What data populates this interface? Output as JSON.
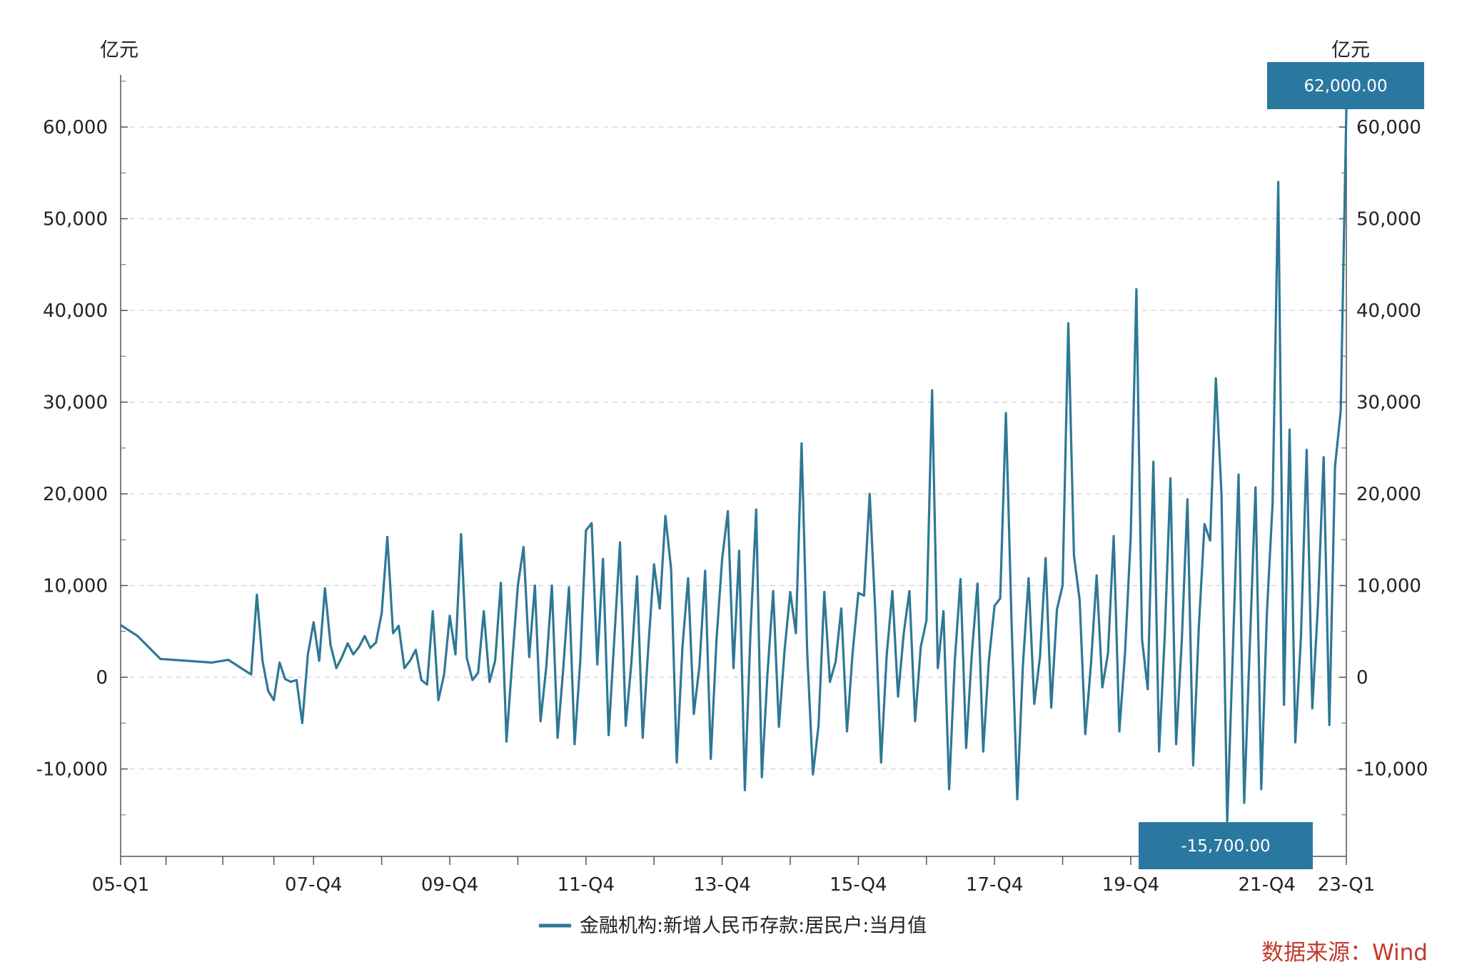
{
  "chart_data": {
    "type": "line",
    "y_unit_left": "亿元",
    "y_unit_right": "亿元",
    "ylim": [
      -20000,
      65000
    ],
    "y_ticks": [
      60000,
      50000,
      40000,
      30000,
      20000,
      10000,
      0,
      -10000
    ],
    "y_tick_labels": [
      "60,000",
      "50,000",
      "40,000",
      "30,000",
      "20,000",
      "10,000",
      "0",
      "-10,000"
    ],
    "x_ticks": [
      {
        "label": "05-Q1",
        "t": 0
      },
      {
        "label": "07-Q4",
        "t": 34
      },
      {
        "label": "09-Q4",
        "t": 58
      },
      {
        "label": "11-Q4",
        "t": 82
      },
      {
        "label": "13-Q4",
        "t": 106
      },
      {
        "label": "15-Q4",
        "t": 130
      },
      {
        "label": "17-Q4",
        "t": 154
      },
      {
        "label": "19-Q4",
        "t": 178
      },
      {
        "label": "21-Q4",
        "t": 202
      },
      {
        "label": "23-Q1",
        "t": 216
      }
    ],
    "xlim": [
      0,
      216
    ],
    "grid": true,
    "legend_position": "bottom-center",
    "series": [
      {
        "name": "金融机构:新增人民币存款:居民户:当月值",
        "color": "#2e7896",
        "points": [
          [
            0,
            5700
          ],
          [
            3,
            4500
          ],
          [
            7,
            2000
          ],
          [
            16,
            1600
          ],
          [
            19,
            1900
          ],
          [
            23,
            300
          ],
          [
            24,
            9000
          ],
          [
            25,
            1800
          ],
          [
            26,
            -1500
          ],
          [
            27,
            -2500
          ],
          [
            28,
            1600
          ],
          [
            29,
            -200
          ],
          [
            30,
            -500
          ],
          [
            31,
            -300
          ],
          [
            32,
            -5000
          ],
          [
            33,
            2500
          ],
          [
            34,
            6000
          ],
          [
            35,
            1800
          ],
          [
            36,
            9700
          ],
          [
            37,
            3500
          ],
          [
            38,
            1000
          ],
          [
            39,
            2200
          ],
          [
            40,
            3700
          ],
          [
            41,
            2500
          ],
          [
            42,
            3300
          ],
          [
            43,
            4500
          ],
          [
            44,
            3200
          ],
          [
            45,
            3800
          ],
          [
            46,
            7000
          ],
          [
            47,
            15300
          ],
          [
            48,
            4800
          ],
          [
            49,
            5600
          ],
          [
            50,
            1000
          ],
          [
            51,
            1800
          ],
          [
            52,
            3000
          ],
          [
            53,
            -300
          ],
          [
            54,
            -800
          ],
          [
            55,
            7200
          ],
          [
            56,
            -2500
          ],
          [
            57,
            300
          ],
          [
            58,
            6700
          ],
          [
            59,
            2500
          ],
          [
            60,
            15600
          ],
          [
            61,
            2100
          ],
          [
            62,
            -300
          ],
          [
            63,
            500
          ],
          [
            64,
            7200
          ],
          [
            65,
            -500
          ],
          [
            66,
            1800
          ],
          [
            67,
            10300
          ],
          [
            68,
            -7000
          ],
          [
            69,
            1700
          ],
          [
            70,
            10000
          ],
          [
            71,
            14200
          ],
          [
            72,
            2200
          ],
          [
            73,
            10000
          ],
          [
            74,
            -4800
          ],
          [
            75,
            1100
          ],
          [
            76,
            10000
          ],
          [
            77,
            -6600
          ],
          [
            78,
            900
          ],
          [
            79,
            9800
          ],
          [
            80,
            -7300
          ],
          [
            81,
            1800
          ],
          [
            82,
            16000
          ],
          [
            83,
            16800
          ],
          [
            84,
            1400
          ],
          [
            85,
            12900
          ],
          [
            86,
            -6300
          ],
          [
            87,
            4300
          ],
          [
            88,
            14700
          ],
          [
            89,
            -5300
          ],
          [
            90,
            1500
          ],
          [
            91,
            11000
          ],
          [
            92,
            -6600
          ],
          [
            93,
            3400
          ],
          [
            94,
            12300
          ],
          [
            95,
            7500
          ],
          [
            96,
            17600
          ],
          [
            97,
            11800
          ],
          [
            98,
            -9300
          ],
          [
            99,
            3300
          ],
          [
            100,
            10800
          ],
          [
            101,
            -4000
          ],
          [
            102,
            1200
          ],
          [
            103,
            11600
          ],
          [
            104,
            -8900
          ],
          [
            105,
            4100
          ],
          [
            106,
            12900
          ],
          [
            107,
            18100
          ],
          [
            108,
            1000
          ],
          [
            109,
            13800
          ],
          [
            110,
            -12300
          ],
          [
            111,
            4900
          ],
          [
            112,
            18300
          ],
          [
            113,
            -10900
          ],
          [
            114,
            500
          ],
          [
            115,
            9400
          ],
          [
            116,
            -5400
          ],
          [
            117,
            2900
          ],
          [
            118,
            9300
          ],
          [
            119,
            4800
          ],
          [
            120,
            25500
          ],
          [
            121,
            2600
          ],
          [
            122,
            -10600
          ],
          [
            123,
            -5200
          ],
          [
            124,
            9300
          ],
          [
            125,
            -500
          ],
          [
            126,
            1700
          ],
          [
            127,
            7500
          ],
          [
            128,
            -5900
          ],
          [
            129,
            2700
          ],
          [
            130,
            9200
          ],
          [
            131,
            8900
          ],
          [
            132,
            20000
          ],
          [
            133,
            7000
          ],
          [
            134,
            -9300
          ],
          [
            135,
            2400
          ],
          [
            136,
            9400
          ],
          [
            137,
            -2100
          ],
          [
            138,
            4800
          ],
          [
            139,
            9400
          ],
          [
            140,
            -4800
          ],
          [
            141,
            3300
          ],
          [
            142,
            6200
          ],
          [
            143,
            31300
          ],
          [
            144,
            1000
          ],
          [
            145,
            7200
          ],
          [
            146,
            -12200
          ],
          [
            147,
            1800
          ],
          [
            148,
            10700
          ],
          [
            149,
            -7700
          ],
          [
            150,
            2600
          ],
          [
            151,
            10200
          ],
          [
            152,
            -8100
          ],
          [
            153,
            1800
          ],
          [
            154,
            7800
          ],
          [
            155,
            8600
          ],
          [
            156,
            28800
          ],
          [
            157,
            6100
          ],
          [
            158,
            -13300
          ],
          [
            159,
            1300
          ],
          [
            160,
            10800
          ],
          [
            161,
            -2900
          ],
          [
            162,
            2200
          ],
          [
            163,
            13000
          ],
          [
            164,
            -3300
          ],
          [
            165,
            7400
          ],
          [
            166,
            10000
          ],
          [
            167,
            38600
          ],
          [
            168,
            13300
          ],
          [
            169,
            8400
          ],
          [
            170,
            -6200
          ],
          [
            171,
            1500
          ],
          [
            172,
            11100
          ],
          [
            173,
            -1100
          ],
          [
            174,
            2600
          ],
          [
            175,
            15400
          ],
          [
            176,
            -5900
          ],
          [
            177,
            2700
          ],
          [
            178,
            15300
          ],
          [
            179,
            42300
          ],
          [
            180,
            4100
          ],
          [
            181,
            -1300
          ],
          [
            182,
            23500
          ],
          [
            183,
            -8100
          ],
          [
            184,
            4500
          ],
          [
            185,
            21700
          ],
          [
            186,
            -7300
          ],
          [
            187,
            4000
          ],
          [
            188,
            19400
          ],
          [
            189,
            -9600
          ],
          [
            190,
            5400
          ],
          [
            191,
            16700
          ],
          [
            192,
            14900
          ],
          [
            193,
            32600
          ],
          [
            194,
            20000
          ],
          [
            195,
            -15700
          ],
          [
            196,
            2800
          ],
          [
            197,
            22100
          ],
          [
            198,
            -13700
          ],
          [
            199,
            3800
          ],
          [
            200,
            20700
          ],
          [
            201,
            -12200
          ],
          [
            202,
            7000
          ],
          [
            203,
            19000
          ],
          [
            204,
            54000
          ],
          [
            205,
            -3000
          ],
          [
            206,
            27000
          ],
          [
            207,
            -7100
          ],
          [
            208,
            4400
          ],
          [
            209,
            24800
          ],
          [
            210,
            -3400
          ],
          [
            211,
            8000
          ],
          [
            212,
            24000
          ],
          [
            213,
            -5200
          ],
          [
            214,
            23000
          ],
          [
            215,
            29000
          ],
          [
            216,
            62000
          ]
        ]
      }
    ],
    "annotations": [
      {
        "label": "62,000.00",
        "t": 216,
        "value": 62000,
        "placement": "top-right"
      },
      {
        "label": "-15,700.00",
        "t": 195,
        "value": -15700,
        "placement": "bottom"
      }
    ],
    "source": "数据来源：Wind"
  }
}
